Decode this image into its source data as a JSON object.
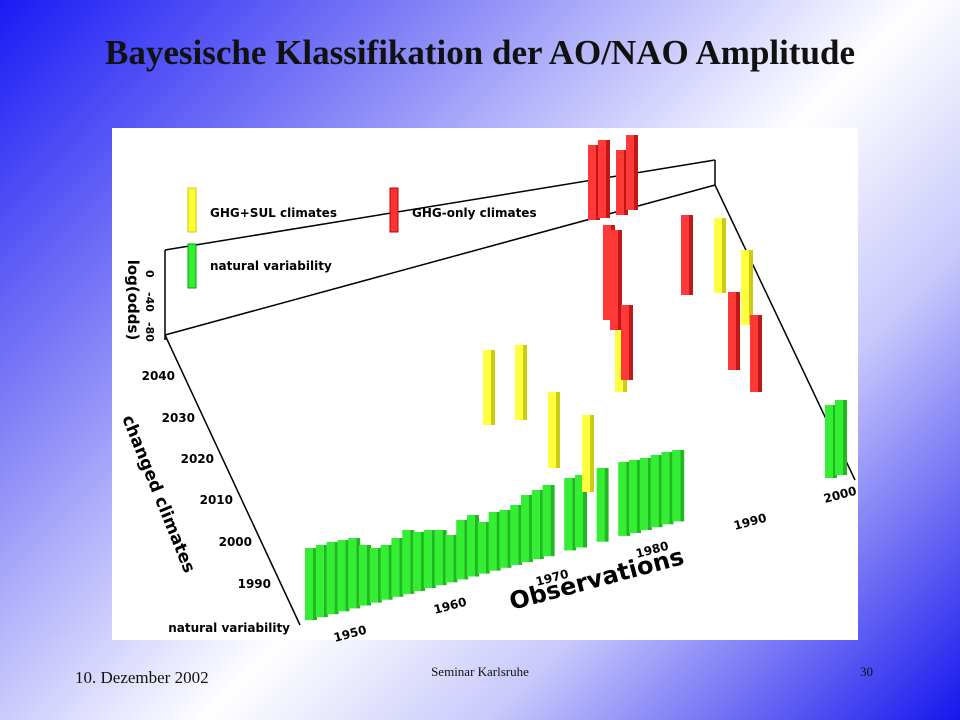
{
  "header": {
    "title": "Bayesische Klassifikation der AO/NAO Amplitude"
  },
  "figure": {
    "legend": [
      "GHG+SUL climates",
      "GHG-only climates",
      "natural variability"
    ],
    "z_axis": {
      "label": "log(odds)",
      "ticks": [
        0,
        -40,
        -80
      ]
    },
    "y_axis": {
      "label": "changed climates",
      "ticks": [
        2040,
        2030,
        2020,
        2010,
        2000,
        1990,
        "natural variability"
      ]
    },
    "x_axis": {
      "label": "Observations",
      "ticks": [
        1950,
        1960,
        1970,
        1980,
        1990,
        2000
      ]
    }
  },
  "footer": {
    "date": "10. Dezember 2002",
    "center": "Seminar Karlsruhe",
    "page": 30
  }
}
